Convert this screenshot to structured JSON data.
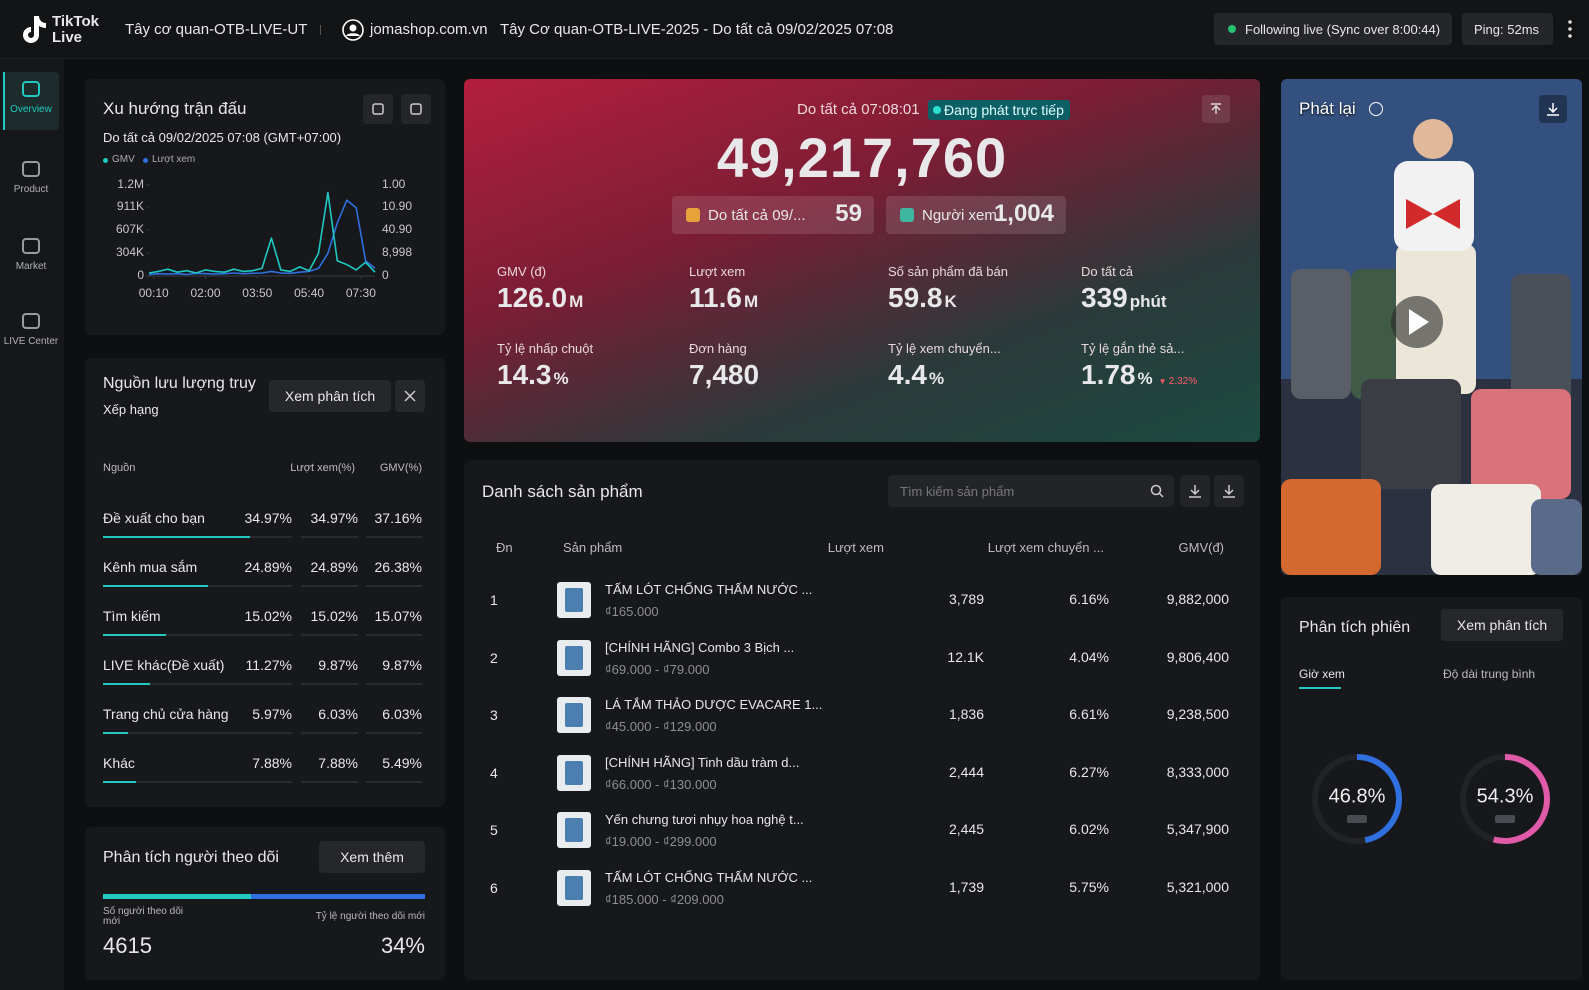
{
  "header": {
    "logo_line1": "TikTok",
    "logo_line2": "Live",
    "account": "Tây cơ quan-OTB-LIVE-UT",
    "shop": "jomashop.com.vn",
    "session": "Tây Cơ quan-OTB-LIVE-2025 - Do tất cả 09/02/2025 07:08",
    "status": "Following live (Sync over 8:00:44)",
    "ping": "Ping: 52ms"
  },
  "sidebar": [
    "Overview",
    "Product",
    "Market",
    "LIVE Center"
  ],
  "trend": {
    "title": "Xu hướng trận đấu",
    "subtitle": "Do tất cả 09/02/2025 07:08 (GMT+07:00)",
    "type": "line",
    "x": [
      0,
      20,
      40,
      60,
      80,
      100,
      120,
      140,
      160,
      180,
      200,
      220,
      240,
      260,
      280,
      300,
      320,
      340,
      360,
      380,
      400,
      420,
      440,
      460,
      480
    ],
    "xlim": [
      0,
      480
    ],
    "xticks": [
      {
        "value": 10,
        "label": "00:10"
      },
      {
        "value": 120,
        "label": "02:00"
      },
      {
        "value": 230,
        "label": "03:50"
      },
      {
        "value": 340,
        "label": "05:40"
      },
      {
        "value": 450,
        "label": "07:30"
      }
    ],
    "ylim": [
      0,
      1200000
    ],
    "yticks": [
      0,
      {
        "value": 304000,
        "label": "304K"
      },
      {
        "value": 607000,
        "label": "607K"
      },
      {
        "value": 911000,
        "label": "911K"
      },
      {
        "value": 1200000,
        "label": "1.2M"
      }
    ],
    "right_tick_labels": [
      "1.00",
      "10.90",
      "40.90",
      "8,998",
      "0"
    ],
    "series": [
      {
        "name": "GMV",
        "color": "#1fc8c0",
        "values": [
          40000,
          60000,
          90000,
          50000,
          70000,
          40000,
          80000,
          60000,
          50000,
          90000,
          60000,
          70000,
          100000,
          500000,
          80000,
          60000,
          120000,
          70000,
          300000,
          1100000,
          200000,
          150000,
          80000,
          180000,
          50000
        ]
      },
      {
        "name": "Lượt xem",
        "color": "#2f6fe0",
        "values": [
          20000,
          30000,
          25000,
          30000,
          20000,
          35000,
          30000,
          25000,
          30000,
          40000,
          30000,
          35000,
          40000,
          60000,
          40000,
          35000,
          50000,
          60000,
          100000,
          300000,
          700000,
          1000000,
          900000,
          200000,
          100000
        ]
      }
    ]
  },
  "traffic": {
    "title": "Nguồn lưu lượng truy",
    "subtitle": "Xếp hạng",
    "button": "Xem phân tích",
    "columns": [
      "Nguồn",
      "Lượt xem(%)",
      "GMV(%)"
    ],
    "rows": [
      {
        "name": "Đề xuất cho bạn",
        "values": [
          34.97,
          34.97,
          37.16
        ],
        "value_labels": [
          "34.97%",
          "34.97%",
          "37.16%"
        ]
      },
      {
        "name": "Kênh mua sắm",
        "values": [
          24.89,
          24.89,
          26.38
        ],
        "value_labels": [
          "24.89%",
          "24.89%",
          "26.38%"
        ]
      },
      {
        "name": "Tìm kiếm",
        "values": [
          15.02,
          15.02,
          15.07
        ],
        "value_labels": [
          "15.02%",
          "15.02%",
          "15.07%"
        ]
      },
      {
        "name": "LIVE khác(Đề xuất)",
        "values": [
          11.27,
          9.87,
          9.87
        ],
        "value_labels": [
          "11.27%",
          "9.87%",
          "9.87%"
        ]
      },
      {
        "name": "Trang chủ cửa hàng",
        "values": [
          5.97,
          6.03,
          6.03
        ],
        "value_labels": [
          "5.97%",
          "6.03%",
          "6.03%"
        ]
      },
      {
        "name": "Khác",
        "values": [
          7.88,
          7.88,
          5.49
        ],
        "value_labels": [
          "7.88%",
          "7.88%",
          "5.49%"
        ]
      }
    ]
  },
  "follower": {
    "title": "Phân tích người theo dõi",
    "button": "Xem thêm",
    "left_label": "Số người theo dõi mới",
    "left_value": "4615",
    "right_label": "Tỷ lệ người theo dõi mới",
    "right_value": "34%"
  },
  "hero": {
    "time": "Do tất cả 07:08:01",
    "badge": "Đang phát trực tiếp",
    "total": "49,217,760",
    "chips": [
      {
        "label": "Do tất cả 09/...",
        "value": "59"
      },
      {
        "label": "Người xem",
        "value": "1,004"
      }
    ],
    "metrics": [
      {
        "label": "GMV (đ)",
        "value": "126.0",
        "unit": "M"
      },
      {
        "label": "Lượt xem",
        "value": "11.6",
        "unit": "M"
      },
      {
        "label": "Số sản phẩm đã bán",
        "value": "59.8",
        "unit": "K"
      },
      {
        "label": "Do tất cả",
        "value": "339",
        "unit": "phút"
      },
      {
        "label": "Tỷ lệ nhấp chuột",
        "value": "14.3",
        "unit": "%"
      },
      {
        "label": "Đơn hàng",
        "value": "7,480"
      },
      {
        "label": "Tỷ lệ xem chuyển...",
        "value": "4.4",
        "unit": "%"
      },
      {
        "label": "Tỷ lệ gắn thẻ sả...",
        "value": "1.78",
        "unit": "%",
        "change": "2.32%"
      }
    ]
  },
  "products": {
    "title": "Danh sách sản phẩm",
    "search_placeholder": "Tìm kiếm sản phẩm",
    "columns": [
      "Đn",
      "Sản phẩm",
      "Lượt xem",
      "Lượt xem chuyển ...",
      "GMV(đ)"
    ],
    "rows": [
      {
        "rank": "1",
        "name": "TẤM LÓT CHỐNG THẤM NƯỚC ...",
        "price": "₫165.000",
        "views": "3,789",
        "conversion": "6.16%",
        "gmv": "9,882,000"
      },
      {
        "rank": "2",
        "name": "[CHÍNH HÃNG] Combo 3 Bịch ...",
        "price": "₫69.000 - ₫79.000",
        "views": "12.1K",
        "conversion": "4.04%",
        "gmv": "9,806,400"
      },
      {
        "rank": "3",
        "name": "LÁ TẮM THẢO DƯỢC EVACARE 1...",
        "price": "₫45.000 - ₫129.000",
        "views": "1,836",
        "conversion": "6.61%",
        "gmv": "9,238,500"
      },
      {
        "rank": "4",
        "name": "[CHÍNH HÃNG] Tinh dầu tràm d...",
        "price": "₫66.000 - ₫130.000",
        "views": "2,444",
        "conversion": "6.27%",
        "gmv": "8,333,000"
      },
      {
        "rank": "5",
        "name": "Yến chưng tươi nhụy hoa nghệ t...",
        "price": "₫19.000 - ₫299.000",
        "views": "2,445",
        "conversion": "6.02%",
        "gmv": "5,347,900"
      },
      {
        "rank": "6",
        "name": "TẤM LÓT CHỐNG THẤM NƯỚC ...",
        "price": "₫185.000 - ₫209.000",
        "views": "1,739",
        "conversion": "5.75%",
        "gmv": "5,321,000"
      }
    ]
  },
  "replay": {
    "title": "Phát lại"
  },
  "session": {
    "title": "Phân tích phiên",
    "button": "Xem phân tích",
    "tabs": [
      "Giờ xem",
      "Độ dài trung bình"
    ],
    "gauges": [
      {
        "value": 46.8,
        "value_label": "46.8%",
        "color": "#2f6fe0"
      },
      {
        "value": 54.3,
        "value_label": "54.3%",
        "color": "#e05aa8"
      }
    ]
  }
}
